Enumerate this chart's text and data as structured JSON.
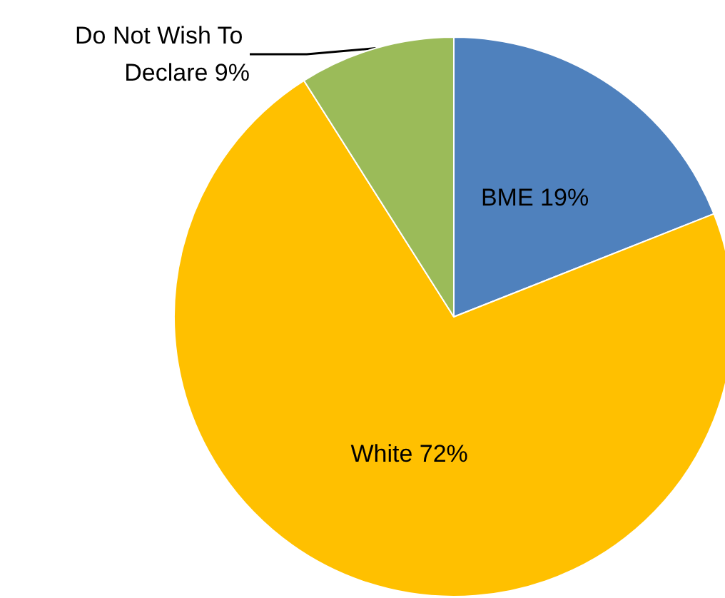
{
  "chart_data": {
    "type": "pie",
    "categories": [
      "BME",
      "White",
      "Do Not Wish To Declare"
    ],
    "values": [
      19,
      72,
      9
    ],
    "colors": [
      "#4f81bd",
      "#ffc000",
      "#9bbb59"
    ],
    "value_labels": [
      "19%",
      "72%",
      "9%"
    ],
    "legend": false
  }
}
